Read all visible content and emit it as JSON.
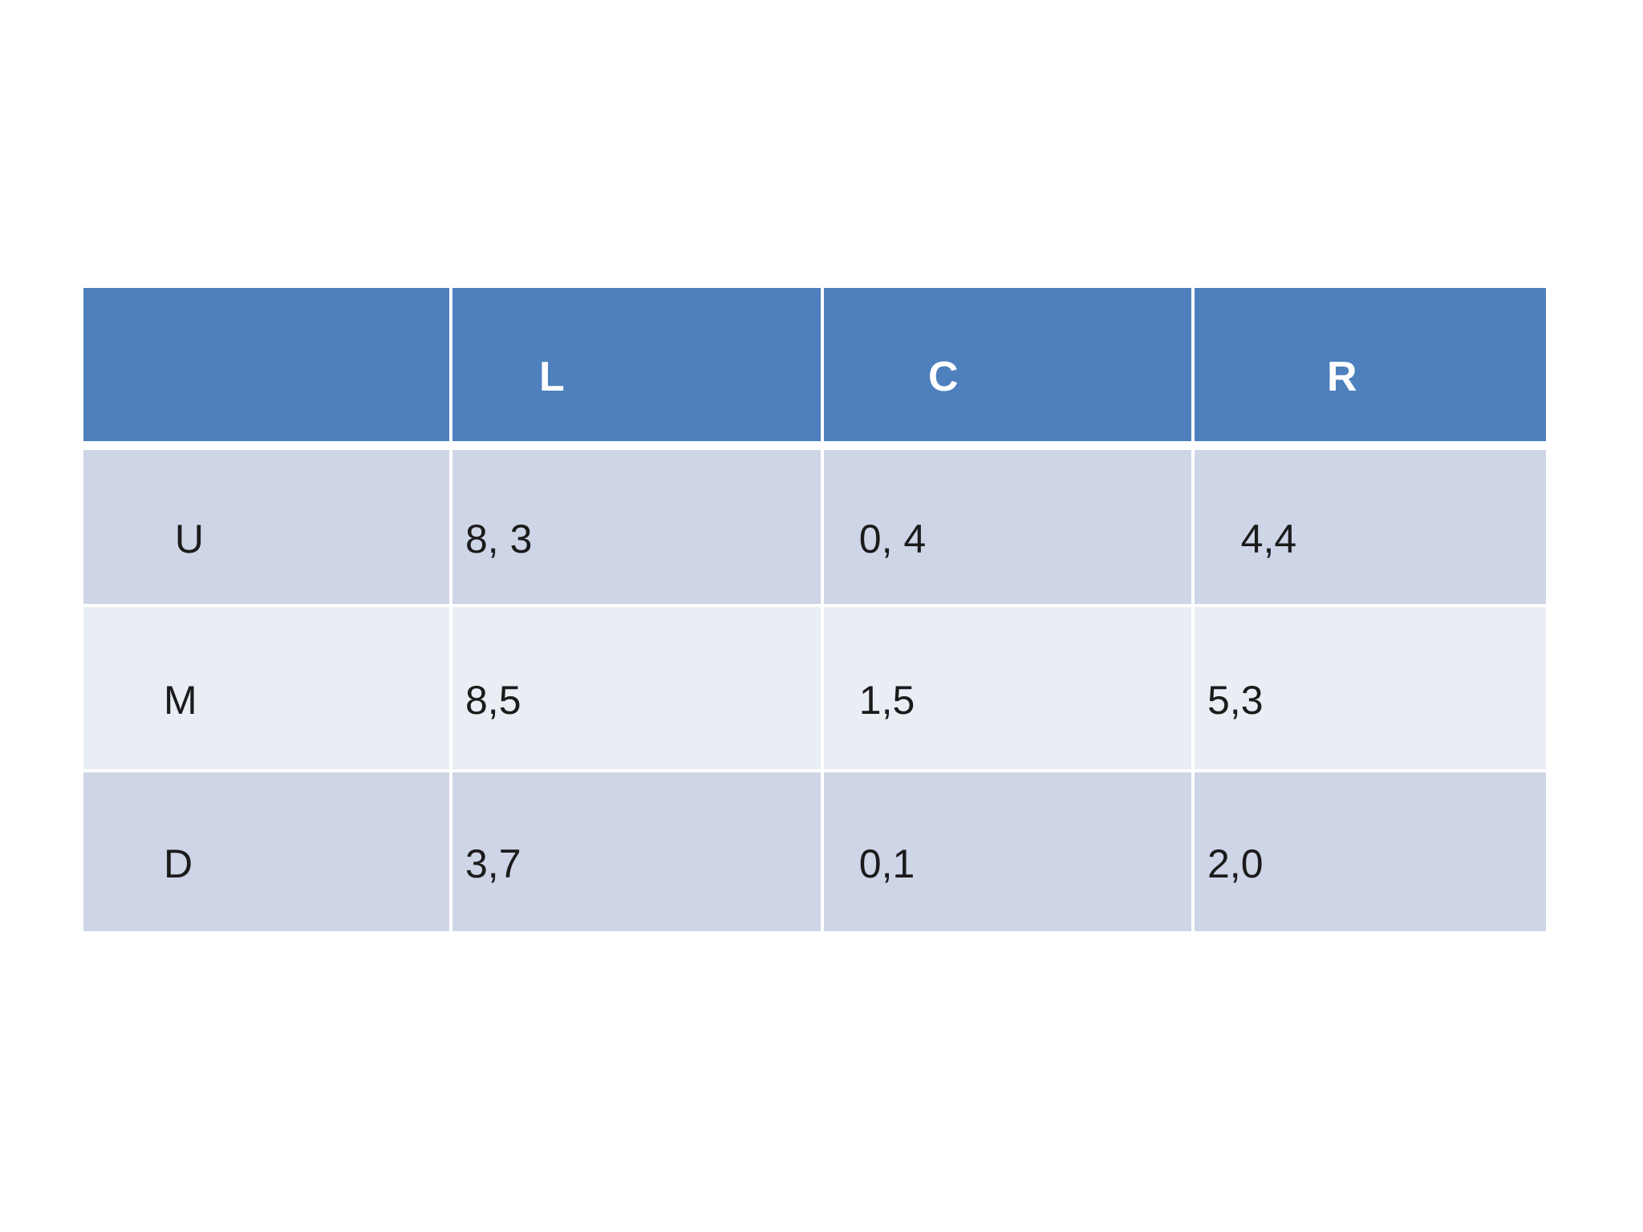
{
  "page": {
    "background": "#ffffff"
  },
  "table": {
    "colors": {
      "header_bg": "#4E80BE",
      "header_text": "#ffffff",
      "row_odd_bg": "#CED5E7",
      "row_even_bg": "#E9EDF4",
      "body_text": "#1b1b1b",
      "divider": "#ffffff"
    },
    "columns": [
      "",
      "L",
      "C",
      "R"
    ],
    "rows": [
      {
        "label": " U",
        "cells": [
          "8, 3",
          "  0, 4",
          "   4,4"
        ]
      },
      {
        "label": "M",
        "cells": [
          "8,5",
          "  1,5",
          "5,3"
        ]
      },
      {
        "label": "D",
        "cells": [
          "3,7",
          "  0,1",
          "2,0"
        ]
      }
    ]
  },
  "chart_data": {
    "type": "table",
    "column_headers": [
      "",
      "L",
      "C",
      "R"
    ],
    "row_headers": [
      "U",
      "M",
      "D"
    ],
    "cells": [
      [
        "8, 3",
        "0, 4",
        "4,4"
      ],
      [
        "8,5",
        "1,5",
        "5,3"
      ],
      [
        "3,7",
        "0,1",
        "2,0"
      ]
    ]
  }
}
